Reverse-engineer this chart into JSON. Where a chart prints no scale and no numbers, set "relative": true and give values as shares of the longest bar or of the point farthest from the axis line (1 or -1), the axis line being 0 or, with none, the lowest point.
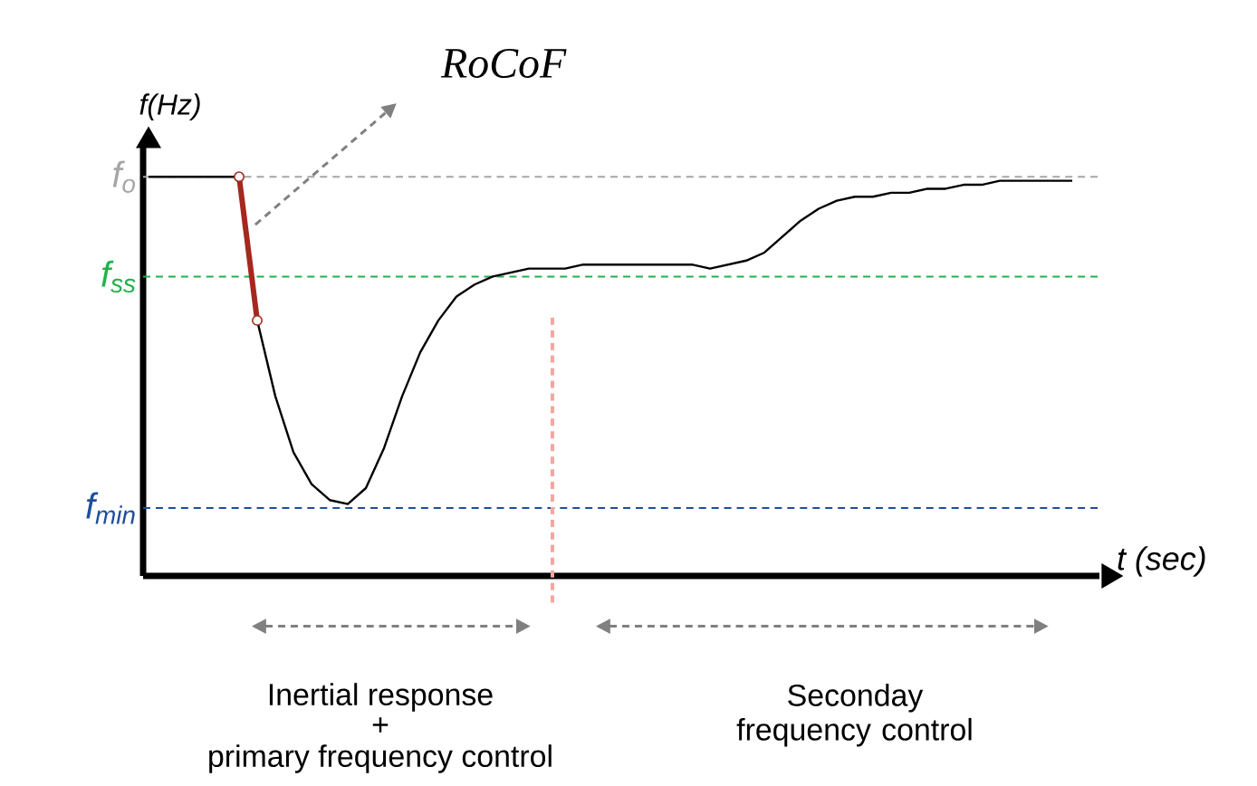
{
  "chart_data": {
    "type": "line",
    "relative": true,
    "xlabel": "t (sec)",
    "ylabel": "f(Hz)",
    "categories": [
      null,
      null,
      null,
      null,
      null,
      null,
      null,
      null,
      null,
      null,
      null,
      null,
      null,
      null,
      null,
      null,
      null,
      null,
      null,
      null,
      null,
      null,
      null,
      null,
      null,
      null,
      null,
      null,
      null,
      null,
      null,
      null,
      null,
      null,
      null,
      null,
      null,
      null,
      null,
      null,
      null,
      null,
      null,
      null,
      null,
      null,
      null,
      null,
      null,
      null,
      null,
      null
    ],
    "series": [
      {
        "color": "#000000",
        "values": [
          1.0,
          1.0,
          1.0,
          1.0,
          1.0,
          1.0,
          0.64,
          0.45,
          0.31,
          0.23,
          0.19,
          0.18,
          0.22,
          0.32,
          0.45,
          0.56,
          0.64,
          0.7,
          0.73,
          0.75,
          0.76,
          0.77,
          0.77,
          0.77,
          0.78,
          0.78,
          0.78,
          0.78,
          0.78,
          0.78,
          0.78,
          0.77,
          0.78,
          0.79,
          0.81,
          0.85,
          0.89,
          0.92,
          0.94,
          0.95,
          0.95,
          0.96,
          0.96,
          0.97,
          0.97,
          0.98,
          0.98,
          0.99,
          0.99,
          0.99,
          0.99,
          0.99
        ]
      },
      {
        "color": "#a5281e",
        "marker": "circle",
        "values": [
          null,
          null,
          null,
          null,
          null,
          1.0,
          0.64,
          null,
          null,
          null,
          null,
          null,
          null,
          null,
          null,
          null,
          null,
          null,
          null,
          null,
          null,
          null,
          null,
          null,
          null,
          null,
          null,
          null,
          null,
          null,
          null,
          null,
          null,
          null,
          null,
          null,
          null,
          null,
          null,
          null,
          null,
          null,
          null,
          null,
          null,
          null,
          null,
          null,
          null,
          null,
          null,
          null
        ]
      }
    ],
    "ref_lines": [
      {
        "axis": "y",
        "value": 1.0,
        "label": "f$_{o}$",
        "color": "#a6a6a6",
        "line_style": "dashed"
      },
      {
        "axis": "y",
        "value": 0.75,
        "label": "f$_{ss}$",
        "color": "#22b14c",
        "line_style": "dashed"
      },
      {
        "axis": "y",
        "value": 0.17,
        "label": "f$_{min}$",
        "color": "#1f4e9a",
        "line_style": "dashed"
      }
    ],
    "annotations": [
      "RoCoF",
      "Inertial response",
      "+",
      "primary frequency control",
      "Seconday frequency control"
    ]
  }
}
